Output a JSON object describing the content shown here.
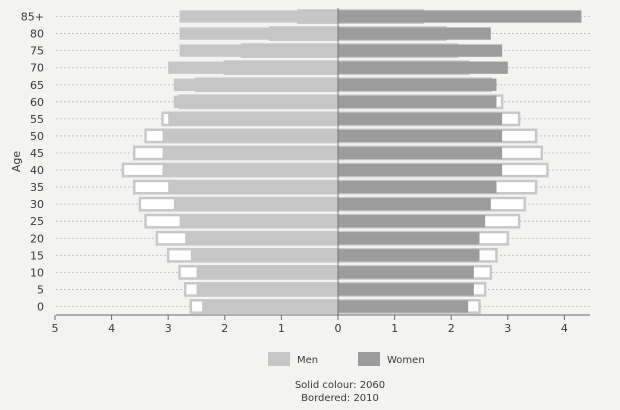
{
  "chart_data": {
    "type": "bar",
    "orientation": "horizontal",
    "ylabel": "Age",
    "age_groups": [
      "0",
      "5",
      "10",
      "15",
      "20",
      "25",
      "30",
      "35",
      "40",
      "45",
      "50",
      "55",
      "60",
      "65",
      "70",
      "75",
      "80",
      "85+"
    ],
    "age_tick_labels": [
      "0",
      "5",
      "10",
      "15",
      "20",
      "25",
      "30",
      "35",
      "40",
      "45",
      "50",
      "55",
      "60",
      "65",
      "70",
      "75",
      "80",
      "85+"
    ],
    "x_tick_labels": [
      "5",
      "4",
      "3",
      "2",
      "1",
      "0",
      "1",
      "2",
      "3",
      "4"
    ],
    "xlim": [
      -5,
      4.3
    ],
    "grid": true,
    "legend_position": "bottom",
    "series": [
      {
        "name": "Men",
        "year": "2060",
        "style": "solid",
        "values": [
          2.4,
          2.5,
          2.5,
          2.6,
          2.7,
          2.8,
          2.9,
          3.0,
          3.1,
          3.1,
          3.1,
          3.0,
          2.9,
          2.9,
          3.0,
          2.8,
          2.8,
          2.8
        ]
      },
      {
        "name": "Women",
        "year": "2060",
        "style": "solid",
        "values": [
          2.3,
          2.4,
          2.4,
          2.5,
          2.5,
          2.6,
          2.7,
          2.8,
          2.9,
          2.9,
          2.9,
          2.9,
          2.8,
          2.8,
          3.0,
          2.9,
          2.7,
          4.3
        ]
      },
      {
        "name": "Men",
        "year": "2010",
        "style": "bordered",
        "values": [
          2.6,
          2.7,
          2.8,
          3.0,
          3.2,
          3.4,
          3.5,
          3.6,
          3.8,
          3.6,
          3.4,
          3.1,
          2.8,
          2.5,
          2.0,
          1.7,
          1.2,
          0.7
        ]
      },
      {
        "name": "Women",
        "year": "2010",
        "style": "bordered",
        "values": [
          2.5,
          2.6,
          2.7,
          2.8,
          3.0,
          3.2,
          3.3,
          3.5,
          3.7,
          3.6,
          3.5,
          3.2,
          2.9,
          2.7,
          2.3,
          2.1,
          1.9,
          1.5
        ]
      }
    ],
    "legend": [
      {
        "label": "Men",
        "color": "#c6c6c6"
      },
      {
        "label": "Women",
        "color": "#9c9c9c"
      }
    ],
    "caption_lines": [
      "Solid colour: 2060",
      "Bordered: 2010"
    ]
  },
  "colors": {
    "men_fill": "#c6c6c6",
    "women_fill": "#9c9c9c",
    "bordered_fill": "#ffffff",
    "bordered_stroke": "#c8c8c8",
    "grid": "#b9b9b9",
    "axis": "#6a6a6a",
    "center_line": "#777777"
  }
}
